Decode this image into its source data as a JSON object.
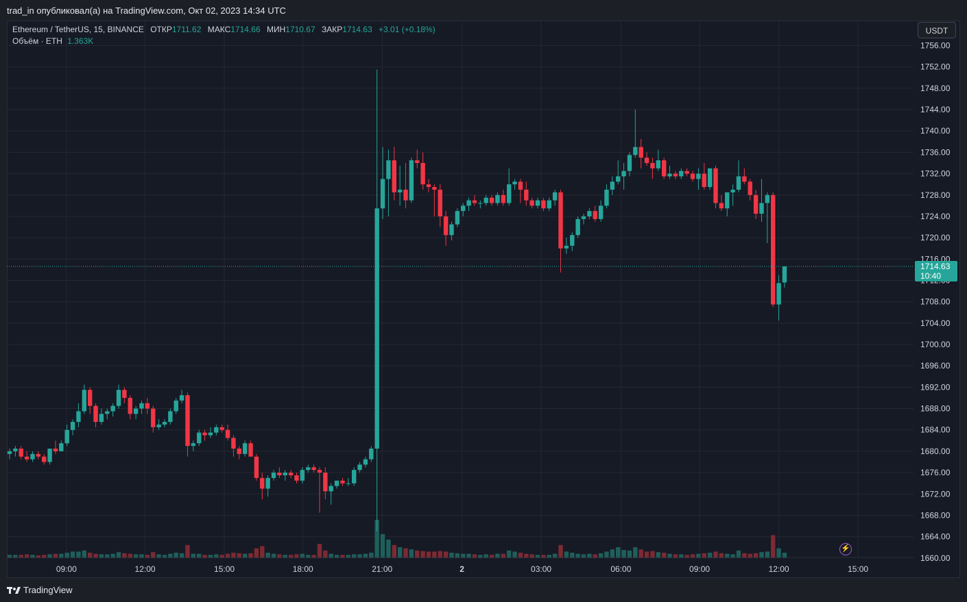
{
  "header": {
    "publisher_line": "trad_in опубликовал(а) на TradingView.com, Окт 02, 2023 14:34 UTC"
  },
  "legend": {
    "symbol": "Ethereum / TetherUS, 15, BINANCE",
    "open_label": "ОТКР",
    "open_value": "1711.62",
    "high_label": "МАКС",
    "high_value": "1714.66",
    "low_label": "МИН",
    "low_value": "1710.67",
    "close_label": "ЗАКР",
    "close_value": "1714.63",
    "change": "+3.01 (+0.18%)",
    "volume_label": "Объём · ETH",
    "volume_value": "1.363K"
  },
  "currency_button": "USDT",
  "price_badge": {
    "price": "1714.63",
    "countdown": "10:40"
  },
  "footer": {
    "brand": "TradingView"
  },
  "colors": {
    "up": "#26a69a",
    "down": "#f23645",
    "vol_up": "#1f5f5b",
    "vol_down": "#7d2a33",
    "grid": "#242833",
    "background": "#161a25"
  },
  "chart_data": {
    "type": "candlestick",
    "symbol": "ETHUSDT",
    "interval": "15",
    "y_axis_ticks": [
      1660,
      1664,
      1668,
      1672,
      1676,
      1680,
      1684,
      1688,
      1692,
      1696,
      1700,
      1704,
      1708,
      1712,
      1716,
      1720,
      1724,
      1728,
      1732,
      1736,
      1740,
      1744,
      1748,
      1752,
      1756
    ],
    "x_axis_ticks": [
      "09:00",
      "12:00",
      "15:00",
      "18:00",
      "21:00",
      "2",
      "03:00",
      "06:00",
      "09:00",
      "12:00",
      "15:00"
    ],
    "ylim": [
      1660,
      1758
    ],
    "last_price": 1714.63,
    "candles": [
      {
        "o": 1679.5,
        "h": 1680.5,
        "l": 1678.5,
        "c": 1680.0,
        "v": 0.3
      },
      {
        "o": 1680.0,
        "h": 1681.0,
        "l": 1679.0,
        "c": 1680.5,
        "v": 0.3
      },
      {
        "o": 1680.5,
        "h": 1681.0,
        "l": 1678.5,
        "c": 1679.0,
        "v": 0.3
      },
      {
        "o": 1679.0,
        "h": 1680.0,
        "l": 1678.0,
        "c": 1678.5,
        "v": 0.35
      },
      {
        "o": 1678.5,
        "h": 1680.0,
        "l": 1678.0,
        "c": 1679.5,
        "v": 0.3
      },
      {
        "o": 1679.5,
        "h": 1680.0,
        "l": 1678.5,
        "c": 1679.0,
        "v": 0.25
      },
      {
        "o": 1679.0,
        "h": 1679.5,
        "l": 1677.5,
        "c": 1678.0,
        "v": 0.3
      },
      {
        "o": 1678.0,
        "h": 1680.5,
        "l": 1677.5,
        "c": 1680.5,
        "v": 0.35
      },
      {
        "o": 1680.5,
        "h": 1682.0,
        "l": 1679.5,
        "c": 1680.0,
        "v": 0.4
      },
      {
        "o": 1680.0,
        "h": 1682.0,
        "l": 1680.0,
        "c": 1681.5,
        "v": 0.4
      },
      {
        "o": 1681.5,
        "h": 1685.0,
        "l": 1681.0,
        "c": 1684.0,
        "v": 0.5
      },
      {
        "o": 1684.0,
        "h": 1686.0,
        "l": 1683.0,
        "c": 1685.5,
        "v": 0.6
      },
      {
        "o": 1685.5,
        "h": 1689.0,
        "l": 1684.5,
        "c": 1687.5,
        "v": 0.6
      },
      {
        "o": 1687.5,
        "h": 1692.5,
        "l": 1687.0,
        "c": 1691.5,
        "v": 0.7
      },
      {
        "o": 1691.5,
        "h": 1692.0,
        "l": 1687.0,
        "c": 1688.5,
        "v": 0.5
      },
      {
        "o": 1688.5,
        "h": 1689.0,
        "l": 1684.5,
        "c": 1685.5,
        "v": 0.4
      },
      {
        "o": 1685.5,
        "h": 1688.0,
        "l": 1685.0,
        "c": 1687.0,
        "v": 0.35
      },
      {
        "o": 1687.0,
        "h": 1688.0,
        "l": 1686.0,
        "c": 1687.5,
        "v": 0.35
      },
      {
        "o": 1687.5,
        "h": 1689.0,
        "l": 1686.5,
        "c": 1688.5,
        "v": 0.4
      },
      {
        "o": 1688.5,
        "h": 1692.5,
        "l": 1688.0,
        "c": 1691.5,
        "v": 0.55
      },
      {
        "o": 1691.5,
        "h": 1692.0,
        "l": 1689.0,
        "c": 1690.0,
        "v": 0.45
      },
      {
        "o": 1690.0,
        "h": 1690.5,
        "l": 1686.0,
        "c": 1687.0,
        "v": 0.4
      },
      {
        "o": 1687.0,
        "h": 1688.5,
        "l": 1686.0,
        "c": 1688.0,
        "v": 0.35
      },
      {
        "o": 1688.0,
        "h": 1689.5,
        "l": 1687.0,
        "c": 1689.0,
        "v": 0.35
      },
      {
        "o": 1689.0,
        "h": 1690.0,
        "l": 1687.0,
        "c": 1688.0,
        "v": 0.3
      },
      {
        "o": 1688.0,
        "h": 1688.5,
        "l": 1683.5,
        "c": 1684.5,
        "v": 0.55
      },
      {
        "o": 1684.5,
        "h": 1686.0,
        "l": 1684.0,
        "c": 1685.0,
        "v": 0.35
      },
      {
        "o": 1685.0,
        "h": 1686.0,
        "l": 1684.5,
        "c": 1685.5,
        "v": 0.3
      },
      {
        "o": 1685.5,
        "h": 1688.0,
        "l": 1685.0,
        "c": 1687.5,
        "v": 0.4
      },
      {
        "o": 1687.5,
        "h": 1690.0,
        "l": 1687.0,
        "c": 1689.5,
        "v": 0.5
      },
      {
        "o": 1689.5,
        "h": 1691.5,
        "l": 1689.0,
        "c": 1690.5,
        "v": 0.45
      },
      {
        "o": 1690.5,
        "h": 1691.0,
        "l": 1679.0,
        "c": 1681.0,
        "v": 1.2
      },
      {
        "o": 1681.0,
        "h": 1682.0,
        "l": 1680.0,
        "c": 1681.5,
        "v": 0.4
      },
      {
        "o": 1681.5,
        "h": 1684.0,
        "l": 1681.0,
        "c": 1683.5,
        "v": 0.4
      },
      {
        "o": 1683.5,
        "h": 1684.0,
        "l": 1682.0,
        "c": 1683.0,
        "v": 0.3
      },
      {
        "o": 1683.0,
        "h": 1684.5,
        "l": 1682.5,
        "c": 1683.5,
        "v": 0.3
      },
      {
        "o": 1683.5,
        "h": 1685.0,
        "l": 1683.0,
        "c": 1684.5,
        "v": 0.35
      },
      {
        "o": 1684.5,
        "h": 1685.0,
        "l": 1683.5,
        "c": 1684.0,
        "v": 0.3
      },
      {
        "o": 1684.0,
        "h": 1685.0,
        "l": 1682.0,
        "c": 1682.5,
        "v": 0.4
      },
      {
        "o": 1682.5,
        "h": 1683.0,
        "l": 1679.0,
        "c": 1680.5,
        "v": 0.5
      },
      {
        "o": 1680.5,
        "h": 1681.0,
        "l": 1678.5,
        "c": 1679.5,
        "v": 0.45
      },
      {
        "o": 1679.5,
        "h": 1682.0,
        "l": 1679.0,
        "c": 1681.5,
        "v": 0.4
      },
      {
        "o": 1681.5,
        "h": 1682.0,
        "l": 1679.0,
        "c": 1679.0,
        "v": 0.45
      },
      {
        "o": 1679.0,
        "h": 1679.5,
        "l": 1674.5,
        "c": 1675.0,
        "v": 0.9
      },
      {
        "o": 1675.0,
        "h": 1676.0,
        "l": 1671.0,
        "c": 1673.0,
        "v": 1.1
      },
      {
        "o": 1673.0,
        "h": 1675.5,
        "l": 1671.5,
        "c": 1675.0,
        "v": 0.5
      },
      {
        "o": 1675.0,
        "h": 1676.5,
        "l": 1674.5,
        "c": 1676.0,
        "v": 0.4
      },
      {
        "o": 1676.0,
        "h": 1677.0,
        "l": 1675.0,
        "c": 1675.5,
        "v": 0.35
      },
      {
        "o": 1675.5,
        "h": 1676.5,
        "l": 1674.5,
        "c": 1676.0,
        "v": 0.3
      },
      {
        "o": 1676.0,
        "h": 1676.5,
        "l": 1675.0,
        "c": 1675.5,
        "v": 0.3
      },
      {
        "o": 1675.5,
        "h": 1676.0,
        "l": 1674.0,
        "c": 1674.5,
        "v": 0.35
      },
      {
        "o": 1674.5,
        "h": 1677.0,
        "l": 1674.0,
        "c": 1676.5,
        "v": 0.4
      },
      {
        "o": 1676.5,
        "h": 1677.5,
        "l": 1676.0,
        "c": 1677.0,
        "v": 0.3
      },
      {
        "o": 1677.0,
        "h": 1677.5,
        "l": 1676.0,
        "c": 1676.5,
        "v": 0.3
      },
      {
        "o": 1676.5,
        "h": 1677.0,
        "l": 1668.5,
        "c": 1676.0,
        "v": 1.3
      },
      {
        "o": 1676.0,
        "h": 1677.0,
        "l": 1671.0,
        "c": 1672.5,
        "v": 0.7
      },
      {
        "o": 1672.5,
        "h": 1674.0,
        "l": 1670.0,
        "c": 1673.5,
        "v": 0.4
      },
      {
        "o": 1673.5,
        "h": 1674.5,
        "l": 1673.0,
        "c": 1674.5,
        "v": 0.3
      },
      {
        "o": 1674.5,
        "h": 1675.0,
        "l": 1673.5,
        "c": 1674.0,
        "v": 0.3
      },
      {
        "o": 1674.0,
        "h": 1675.0,
        "l": 1673.5,
        "c": 1674.0,
        "v": 0.3
      },
      {
        "o": 1674.0,
        "h": 1677.0,
        "l": 1673.5,
        "c": 1676.5,
        "v": 0.35
      },
      {
        "o": 1676.5,
        "h": 1678.0,
        "l": 1676.0,
        "c": 1677.5,
        "v": 0.35
      },
      {
        "o": 1677.5,
        "h": 1679.0,
        "l": 1677.0,
        "c": 1678.5,
        "v": 0.4
      },
      {
        "o": 1678.5,
        "h": 1681.0,
        "l": 1678.0,
        "c": 1680.5,
        "v": 0.5
      },
      {
        "o": 1680.5,
        "h": 1751.5,
        "l": 1665.0,
        "c": 1725.5,
        "v": 3.5
      },
      {
        "o": 1725.5,
        "h": 1737.0,
        "l": 1723.5,
        "c": 1731.0,
        "v": 2.2
      },
      {
        "o": 1731.0,
        "h": 1736.5,
        "l": 1724.0,
        "c": 1734.5,
        "v": 1.7
      },
      {
        "o": 1734.5,
        "h": 1737.0,
        "l": 1727.0,
        "c": 1728.5,
        "v": 1.2
      },
      {
        "o": 1728.5,
        "h": 1733.5,
        "l": 1726.0,
        "c": 1729.0,
        "v": 1.0
      },
      {
        "o": 1729.0,
        "h": 1734.0,
        "l": 1725.5,
        "c": 1727.0,
        "v": 0.9
      },
      {
        "o": 1727.0,
        "h": 1735.0,
        "l": 1726.5,
        "c": 1734.5,
        "v": 0.8
      },
      {
        "o": 1734.5,
        "h": 1736.5,
        "l": 1733.0,
        "c": 1734.0,
        "v": 0.7
      },
      {
        "o": 1734.0,
        "h": 1736.0,
        "l": 1729.0,
        "c": 1730.0,
        "v": 0.65
      },
      {
        "o": 1730.0,
        "h": 1731.0,
        "l": 1728.5,
        "c": 1729.5,
        "v": 0.6
      },
      {
        "o": 1729.5,
        "h": 1730.0,
        "l": 1724.0,
        "c": 1729.0,
        "v": 0.6
      },
      {
        "o": 1729.0,
        "h": 1730.0,
        "l": 1722.0,
        "c": 1724.0,
        "v": 0.65
      },
      {
        "o": 1724.0,
        "h": 1725.0,
        "l": 1718.5,
        "c": 1720.5,
        "v": 0.6
      },
      {
        "o": 1720.5,
        "h": 1723.0,
        "l": 1719.5,
        "c": 1722.5,
        "v": 0.5
      },
      {
        "o": 1722.5,
        "h": 1725.5,
        "l": 1722.0,
        "c": 1725.0,
        "v": 0.45
      },
      {
        "o": 1725.0,
        "h": 1726.5,
        "l": 1724.0,
        "c": 1726.0,
        "v": 0.4
      },
      {
        "o": 1726.0,
        "h": 1727.5,
        "l": 1725.0,
        "c": 1727.0,
        "v": 0.4
      },
      {
        "o": 1727.0,
        "h": 1728.0,
        "l": 1726.0,
        "c": 1726.5,
        "v": 0.35
      },
      {
        "o": 1726.5,
        "h": 1727.0,
        "l": 1725.5,
        "c": 1726.5,
        "v": 0.3
      },
      {
        "o": 1726.5,
        "h": 1728.0,
        "l": 1726.0,
        "c": 1727.5,
        "v": 0.35
      },
      {
        "o": 1727.5,
        "h": 1728.0,
        "l": 1726.0,
        "c": 1726.5,
        "v": 0.3
      },
      {
        "o": 1726.5,
        "h": 1728.5,
        "l": 1726.0,
        "c": 1728.0,
        "v": 0.4
      },
      {
        "o": 1728.0,
        "h": 1729.0,
        "l": 1726.0,
        "c": 1726.5,
        "v": 0.4
      },
      {
        "o": 1726.5,
        "h": 1733.0,
        "l": 1726.0,
        "c": 1730.0,
        "v": 0.7
      },
      {
        "o": 1730.0,
        "h": 1731.0,
        "l": 1729.0,
        "c": 1730.5,
        "v": 0.6
      },
      {
        "o": 1730.5,
        "h": 1731.0,
        "l": 1726.5,
        "c": 1729.0,
        "v": 0.5
      },
      {
        "o": 1729.0,
        "h": 1730.5,
        "l": 1726.0,
        "c": 1727.0,
        "v": 0.4
      },
      {
        "o": 1727.0,
        "h": 1727.5,
        "l": 1725.5,
        "c": 1726.0,
        "v": 0.35
      },
      {
        "o": 1726.0,
        "h": 1727.5,
        "l": 1725.5,
        "c": 1727.0,
        "v": 0.3
      },
      {
        "o": 1727.0,
        "h": 1727.5,
        "l": 1725.0,
        "c": 1725.5,
        "v": 0.3
      },
      {
        "o": 1725.5,
        "h": 1727.5,
        "l": 1725.0,
        "c": 1727.0,
        "v": 0.3
      },
      {
        "o": 1727.0,
        "h": 1729.0,
        "l": 1726.0,
        "c": 1728.5,
        "v": 0.4
      },
      {
        "o": 1728.5,
        "h": 1729.0,
        "l": 1713.5,
        "c": 1718.0,
        "v": 1.2
      },
      {
        "o": 1718.0,
        "h": 1720.0,
        "l": 1717.0,
        "c": 1718.5,
        "v": 0.6
      },
      {
        "o": 1718.5,
        "h": 1721.0,
        "l": 1717.5,
        "c": 1720.5,
        "v": 0.5
      },
      {
        "o": 1720.5,
        "h": 1724.0,
        "l": 1720.0,
        "c": 1723.5,
        "v": 0.4
      },
      {
        "o": 1723.5,
        "h": 1724.5,
        "l": 1722.5,
        "c": 1724.0,
        "v": 0.35
      },
      {
        "o": 1724.0,
        "h": 1725.5,
        "l": 1723.5,
        "c": 1725.0,
        "v": 0.4
      },
      {
        "o": 1725.0,
        "h": 1726.0,
        "l": 1723.0,
        "c": 1723.5,
        "v": 0.35
      },
      {
        "o": 1723.5,
        "h": 1727.0,
        "l": 1723.0,
        "c": 1726.0,
        "v": 0.45
      },
      {
        "o": 1726.0,
        "h": 1730.0,
        "l": 1725.5,
        "c": 1729.0,
        "v": 0.6
      },
      {
        "o": 1729.0,
        "h": 1731.5,
        "l": 1728.0,
        "c": 1730.5,
        "v": 0.8
      },
      {
        "o": 1730.5,
        "h": 1734.5,
        "l": 1730.0,
        "c": 1731.5,
        "v": 1.0
      },
      {
        "o": 1731.5,
        "h": 1734.0,
        "l": 1729.0,
        "c": 1732.5,
        "v": 0.75
      },
      {
        "o": 1732.5,
        "h": 1736.0,
        "l": 1731.5,
        "c": 1735.5,
        "v": 0.7
      },
      {
        "o": 1735.5,
        "h": 1744.0,
        "l": 1735.0,
        "c": 1737.0,
        "v": 1.0
      },
      {
        "o": 1737.0,
        "h": 1738.5,
        "l": 1733.0,
        "c": 1735.0,
        "v": 0.8
      },
      {
        "o": 1735.0,
        "h": 1736.0,
        "l": 1733.5,
        "c": 1734.0,
        "v": 0.6
      },
      {
        "o": 1734.0,
        "h": 1735.0,
        "l": 1731.0,
        "c": 1733.0,
        "v": 0.65
      },
      {
        "o": 1733.0,
        "h": 1736.5,
        "l": 1732.5,
        "c": 1734.5,
        "v": 0.55
      },
      {
        "o": 1734.5,
        "h": 1735.0,
        "l": 1731.0,
        "c": 1731.5,
        "v": 0.5
      },
      {
        "o": 1731.5,
        "h": 1733.5,
        "l": 1731.0,
        "c": 1732.0,
        "v": 0.4
      },
      {
        "o": 1732.0,
        "h": 1732.5,
        "l": 1731.0,
        "c": 1731.5,
        "v": 0.35
      },
      {
        "o": 1731.5,
        "h": 1733.0,
        "l": 1731.0,
        "c": 1732.5,
        "v": 0.35
      },
      {
        "o": 1732.5,
        "h": 1733.0,
        "l": 1731.5,
        "c": 1732.0,
        "v": 0.3
      },
      {
        "o": 1732.0,
        "h": 1732.5,
        "l": 1730.5,
        "c": 1731.0,
        "v": 0.35
      },
      {
        "o": 1731.0,
        "h": 1733.0,
        "l": 1729.0,
        "c": 1732.0,
        "v": 0.4
      },
      {
        "o": 1732.0,
        "h": 1734.0,
        "l": 1729.0,
        "c": 1729.5,
        "v": 0.45
      },
      {
        "o": 1729.5,
        "h": 1733.0,
        "l": 1729.0,
        "c": 1733.0,
        "v": 0.5
      },
      {
        "o": 1733.0,
        "h": 1733.5,
        "l": 1725.5,
        "c": 1726.5,
        "v": 0.6
      },
      {
        "o": 1726.5,
        "h": 1728.0,
        "l": 1725.0,
        "c": 1725.5,
        "v": 0.45
      },
      {
        "o": 1725.5,
        "h": 1728.5,
        "l": 1724.0,
        "c": 1728.5,
        "v": 0.4
      },
      {
        "o": 1728.5,
        "h": 1730.0,
        "l": 1726.0,
        "c": 1729.0,
        "v": 0.35
      },
      {
        "o": 1729.0,
        "h": 1734.5,
        "l": 1728.5,
        "c": 1731.5,
        "v": 0.7
      },
      {
        "o": 1731.5,
        "h": 1733.0,
        "l": 1730.0,
        "c": 1730.5,
        "v": 0.45
      },
      {
        "o": 1730.5,
        "h": 1731.0,
        "l": 1727.0,
        "c": 1728.0,
        "v": 0.4
      },
      {
        "o": 1728.0,
        "h": 1729.0,
        "l": 1723.5,
        "c": 1724.5,
        "v": 0.45
      },
      {
        "o": 1724.5,
        "h": 1731.0,
        "l": 1723.0,
        "c": 1726.5,
        "v": 0.55
      },
      {
        "o": 1726.5,
        "h": 1728.5,
        "l": 1719.0,
        "c": 1728.0,
        "v": 0.6
      },
      {
        "o": 1728.0,
        "h": 1728.5,
        "l": 1707.0,
        "c": 1707.5,
        "v": 2.1
      },
      {
        "o": 1707.5,
        "h": 1713.0,
        "l": 1704.5,
        "c": 1711.5,
        "v": 0.9
      },
      {
        "o": 1711.62,
        "h": 1714.66,
        "l": 1710.67,
        "c": 1714.63,
        "v": 0.5
      }
    ]
  }
}
